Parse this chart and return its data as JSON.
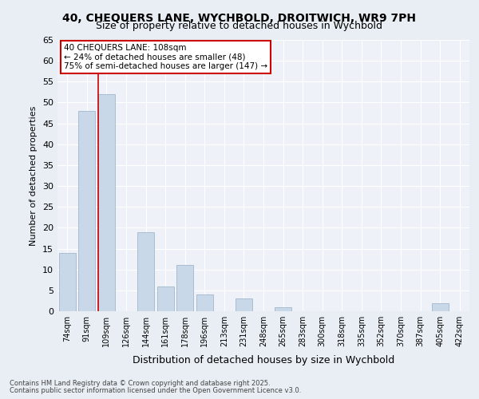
{
  "title_line1": "40, CHEQUERS LANE, WYCHBOLD, DROITWICH, WR9 7PH",
  "title_line2": "Size of property relative to detached houses in Wychbold",
  "xlabel": "Distribution of detached houses by size in Wychbold",
  "ylabel": "Number of detached properties",
  "categories": [
    "74sqm",
    "91sqm",
    "109sqm",
    "126sqm",
    "144sqm",
    "161sqm",
    "178sqm",
    "196sqm",
    "213sqm",
    "231sqm",
    "248sqm",
    "265sqm",
    "283sqm",
    "300sqm",
    "318sqm",
    "335sqm",
    "352sqm",
    "370sqm",
    "387sqm",
    "405sqm",
    "422sqm"
  ],
  "values": [
    14,
    48,
    52,
    0,
    19,
    6,
    11,
    4,
    0,
    3,
    0,
    1,
    0,
    0,
    0,
    0,
    0,
    0,
    0,
    2,
    0
  ],
  "bar_color": "#c8d8e8",
  "bar_edge_color": "#a0b8cc",
  "annotation_text_line1": "40 CHEQUERS LANE: 108sqm",
  "annotation_text_line2": "← 24% of detached houses are smaller (48)",
  "annotation_text_line3": "75% of semi-detached houses are larger (147) →",
  "annotation_box_color": "#ffffff",
  "annotation_border_color": "#cc0000",
  "vline_color": "#cc0000",
  "vline_x_index": 2,
  "ylim": [
    0,
    65
  ],
  "yticks": [
    0,
    5,
    10,
    15,
    20,
    25,
    30,
    35,
    40,
    45,
    50,
    55,
    60,
    65
  ],
  "bg_color": "#e8eef4",
  "plot_bg_color": "#eef2f8",
  "grid_color": "#ffffff",
  "footer_line1": "Contains HM Land Registry data © Crown copyright and database right 2025.",
  "footer_line2": "Contains public sector information licensed under the Open Government Licence v3.0."
}
